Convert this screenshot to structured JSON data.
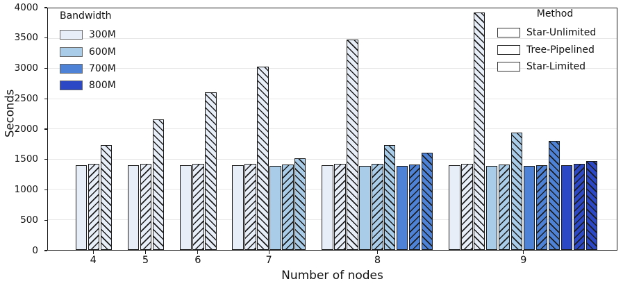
{
  "chart_data": {
    "type": "bar",
    "title": "",
    "xlabel": "Number of nodes",
    "ylabel": "Seconds",
    "ylim": [
      0,
      4000
    ],
    "yticks": [
      0,
      500,
      1000,
      1500,
      2000,
      2500,
      3000,
      3500,
      4000
    ],
    "grid": "horizontal",
    "legend_bandwidth": {
      "title": "Bandwidth",
      "entries": [
        {
          "label": "300M",
          "color": "#e7eef8"
        },
        {
          "label": "600M",
          "color": "#a9cce9"
        },
        {
          "label": "700M",
          "color": "#4d82d6"
        },
        {
          "label": "800M",
          "color": "#2c48c5"
        }
      ]
    },
    "legend_method": {
      "title": "Method",
      "entries": [
        {
          "label": "Star-Unlimited",
          "hatch": "none"
        },
        {
          "label": "Tree-Pipelined",
          "hatch": "/"
        },
        {
          "label": "Star-Limited",
          "hatch": "\\"
        }
      ]
    },
    "bar_edge_color": "#1b1b1b",
    "groups": [
      {
        "node": "4",
        "bars": [
          {
            "bandwidth": "300M",
            "method": "Star-Unlimited",
            "value": 1400
          },
          {
            "bandwidth": "300M",
            "method": "Tree-Pipelined",
            "value": 1420
          },
          {
            "bandwidth": "300M",
            "method": "Star-Limited",
            "value": 1740
          }
        ]
      },
      {
        "node": "5",
        "bars": [
          {
            "bandwidth": "300M",
            "method": "Star-Unlimited",
            "value": 1400
          },
          {
            "bandwidth": "300M",
            "method": "Tree-Pipelined",
            "value": 1420
          },
          {
            "bandwidth": "300M",
            "method": "Star-Limited",
            "value": 2160
          }
        ]
      },
      {
        "node": "6",
        "bars": [
          {
            "bandwidth": "300M",
            "method": "Star-Unlimited",
            "value": 1400
          },
          {
            "bandwidth": "300M",
            "method": "Tree-Pipelined",
            "value": 1420
          },
          {
            "bandwidth": "300M",
            "method": "Star-Limited",
            "value": 2610
          }
        ]
      },
      {
        "node": "7",
        "bars": [
          {
            "bandwidth": "300M",
            "method": "Star-Unlimited",
            "value": 1400
          },
          {
            "bandwidth": "300M",
            "method": "Tree-Pipelined",
            "value": 1430
          },
          {
            "bandwidth": "300M",
            "method": "Star-Limited",
            "value": 3040
          },
          {
            "bandwidth": "600M",
            "method": "Star-Unlimited",
            "value": 1390
          },
          {
            "bandwidth": "600M",
            "method": "Tree-Pipelined",
            "value": 1410
          },
          {
            "bandwidth": "600M",
            "method": "Star-Limited",
            "value": 1520
          }
        ]
      },
      {
        "node": "8",
        "bars": [
          {
            "bandwidth": "300M",
            "method": "Star-Unlimited",
            "value": 1400
          },
          {
            "bandwidth": "300M",
            "method": "Tree-Pipelined",
            "value": 1430
          },
          {
            "bandwidth": "300M",
            "method": "Star-Limited",
            "value": 3480
          },
          {
            "bandwidth": "600M",
            "method": "Star-Unlimited",
            "value": 1390
          },
          {
            "bandwidth": "600M",
            "method": "Tree-Pipelined",
            "value": 1420
          },
          {
            "bandwidth": "600M",
            "method": "Star-Limited",
            "value": 1740
          },
          {
            "bandwidth": "700M",
            "method": "Star-Unlimited",
            "value": 1390
          },
          {
            "bandwidth": "700M",
            "method": "Tree-Pipelined",
            "value": 1410
          },
          {
            "bandwidth": "700M",
            "method": "Star-Limited",
            "value": 1610
          }
        ]
      },
      {
        "node": "9",
        "bars": [
          {
            "bandwidth": "300M",
            "method": "Star-Unlimited",
            "value": 1400
          },
          {
            "bandwidth": "300M",
            "method": "Tree-Pipelined",
            "value": 1430
          },
          {
            "bandwidth": "300M",
            "method": "Star-Limited",
            "value": 3930
          },
          {
            "bandwidth": "600M",
            "method": "Star-Unlimited",
            "value": 1390
          },
          {
            "bandwidth": "600M",
            "method": "Tree-Pipelined",
            "value": 1410
          },
          {
            "bandwidth": "600M",
            "method": "Star-Limited",
            "value": 1940
          },
          {
            "bandwidth": "700M",
            "method": "Star-Unlimited",
            "value": 1390
          },
          {
            "bandwidth": "700M",
            "method": "Tree-Pipelined",
            "value": 1400
          },
          {
            "bandwidth": "700M",
            "method": "Star-Limited",
            "value": 1810
          },
          {
            "bandwidth": "800M",
            "method": "Star-Unlimited",
            "value": 1400
          },
          {
            "bandwidth": "800M",
            "method": "Tree-Pipelined",
            "value": 1420
          },
          {
            "bandwidth": "800M",
            "method": "Star-Limited",
            "value": 1470
          }
        ]
      }
    ]
  }
}
